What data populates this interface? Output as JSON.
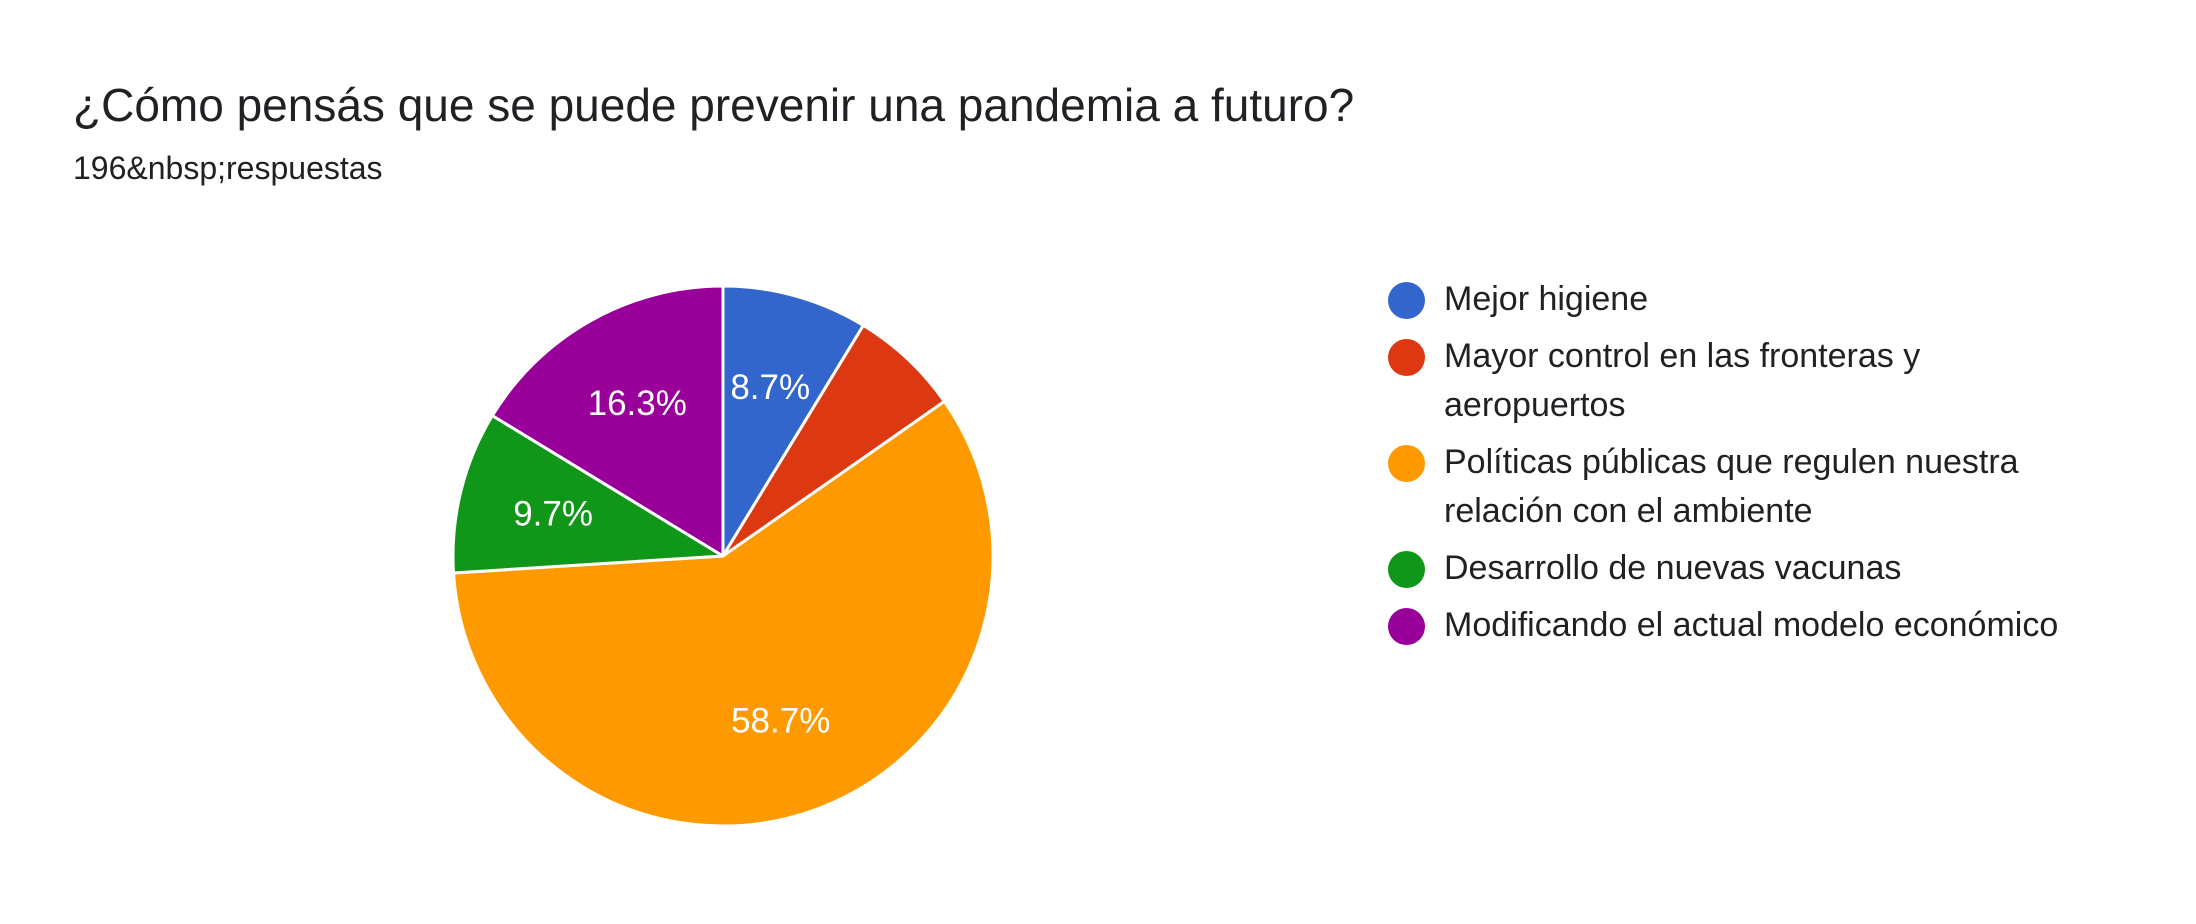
{
  "header": {
    "title": "¿Cómo pensás que se puede prevenir una pandemia a futuro?",
    "subtitle": "196&nbsp;respuestas"
  },
  "chart_data": {
    "type": "pie",
    "title": "¿Cómo pensás que se puede prevenir una pandemia a futuro?",
    "total_responses_text": "196&nbsp;respuestas",
    "legend_position": "right",
    "start_angle": "top, clockwise",
    "slices": [
      {
        "label": "Mejor higiene",
        "percent": 8.7,
        "value_label": "8.7%",
        "color": "#3366cc"
      },
      {
        "label": "Mayor control en las fronteras y aeropuertos",
        "percent": 6.6,
        "value_label": "",
        "color": "#dc3912"
      },
      {
        "label": "Políticas públicas que regulen nuestra relación con el ambiente",
        "percent": 58.7,
        "value_label": "58.7%",
        "color": "#ff9900"
      },
      {
        "label": "Desarrollo de nuevas vacunas",
        "percent": 9.7,
        "value_label": "9.7%",
        "color": "#109618"
      },
      {
        "label": "Modificando el actual modelo económico",
        "percent": 16.3,
        "value_label": "16.3%",
        "color": "#990099"
      }
    ]
  }
}
